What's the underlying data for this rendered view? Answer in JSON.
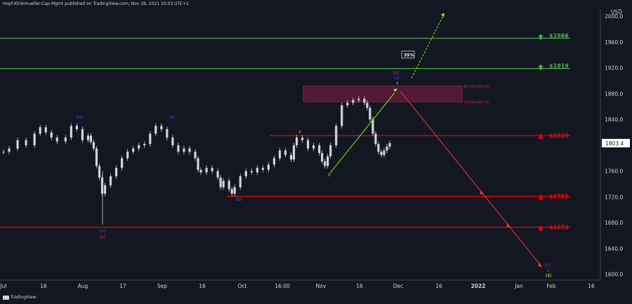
{
  "header": {
    "publisher": "Hopf-Klinkmueller-Cap-Mgmt published on TradingView.com, Nov 26, 2021 10:03 UTC+1"
  },
  "footer": {
    "brand": "TradingView"
  },
  "colors": {
    "background": "#131722",
    "candle": "#d1d4dc",
    "green_level": "#4caf50",
    "red_level": "#ff0000",
    "wave_blue": "#2962ff",
    "wave_magenta": "#e91e63",
    "wave_orange": "#ff9800",
    "wave_yellow": "#ffeb3b",
    "zone_fill": "#5c1a3a",
    "axis_text": "#d1d4dc",
    "projection_red": "#ff3333",
    "projection_green": "#76ff03"
  },
  "chart_data": {
    "type": "candlestick",
    "ylabel": "USD",
    "ylim": [
      1591,
      2010
    ],
    "y_ticks": [
      "1600.0",
      "1640.0",
      "1680.0",
      "1720.0",
      "1760.0",
      "1800.0",
      "1840.0",
      "1880.0",
      "1920.0",
      "1960.0",
      "2000.0"
    ],
    "x_ticks": [
      "Jul",
      "16",
      "Aug",
      "17",
      "Sep",
      "16",
      "Oct",
      "16:00",
      "Nov",
      "16",
      "Dec",
      "16",
      "2022",
      "Jan",
      "Feb",
      "16"
    ],
    "last_price": {
      "value": 1803.4,
      "label": "1803.4"
    },
    "levels": [
      {
        "value": 1966,
        "label": "$1966",
        "direction": "up",
        "color": "#4caf50"
      },
      {
        "value": 1919,
        "label": "$1919",
        "direction": "up",
        "color": "#4caf50"
      },
      {
        "value": 1815,
        "label": "$1815",
        "direction": "down",
        "color": "#ff0000"
      },
      {
        "value": 1721,
        "label": "$1721",
        "direction": "down",
        "color": "#ff0000"
      },
      {
        "value": 1673,
        "label": "$1673",
        "direction": "down",
        "color": "#ff0000"
      }
    ],
    "fib_zone": {
      "top": 1891.8,
      "bottom": 1867.4,
      "top_label": "88.70%(1891.8)",
      "bottom_label": "78.60%(1867.4)"
    },
    "percent_box": {
      "label": "35%"
    },
    "wave_labels": [
      {
        "text": "(iv)",
        "price": 1842,
        "color": "#2962ff",
        "t": 0.5
      },
      {
        "text": "(a)",
        "price": 1842,
        "color": "#2962ff",
        "t": 0.5
      },
      {
        "text": "a",
        "price": 1819,
        "color": "#ff9800",
        "t": 0.5
      },
      {
        "text": "b",
        "price": 1752,
        "color": "#ff9800",
        "t": 0.5
      },
      {
        "text": "(b)",
        "price": 1714,
        "color": "#2962ff",
        "t": 0.5
      },
      {
        "text": "(v)",
        "price": 1665,
        "color": "#2962ff",
        "t": 0.5
      },
      {
        "text": "[a]",
        "price": 1656,
        "color": "#e91e63",
        "t": 0.5
      },
      {
        "text": "[b]",
        "price": 1910,
        "color": "#e91e63",
        "t": 0.5
      },
      {
        "text": "(c)",
        "price": 1902,
        "color": "#2962ff",
        "t": 0.5
      },
      {
        "text": "c",
        "price": 1894,
        "color": "#ffeb3b",
        "t": 0.5
      },
      {
        "text": "[c]",
        "price": 1612,
        "color": "#e91e63",
        "t": 0.5
      },
      {
        "text": "C",
        "price": 1604,
        "color": "#2962ff",
        "t": 0.5
      },
      {
        "text": "(4)",
        "price": 1596,
        "color": "#ffeb3b",
        "t": 0.5
      }
    ],
    "price_path": [
      [
        0,
        1790
      ],
      [
        0.01,
        1795
      ],
      [
        0.025,
        1808
      ],
      [
        0.04,
        1800
      ],
      [
        0.055,
        1818
      ],
      [
        0.065,
        1828
      ],
      [
        0.075,
        1820
      ],
      [
        0.085,
        1812
      ],
      [
        0.095,
        1806
      ],
      [
        0.11,
        1812
      ],
      [
        0.12,
        1830
      ],
      [
        0.13,
        1825
      ],
      [
        0.14,
        1808
      ],
      [
        0.15,
        1815
      ],
      [
        0.155,
        1805
      ],
      [
        0.16,
        1795
      ],
      [
        0.165,
        1768
      ],
      [
        0.17,
        1750
      ],
      [
        0.175,
        1725
      ],
      [
        0.18,
        1738
      ],
      [
        0.19,
        1752
      ],
      [
        0.2,
        1765
      ],
      [
        0.21,
        1780
      ],
      [
        0.22,
        1790
      ],
      [
        0.23,
        1795
      ],
      [
        0.24,
        1800
      ],
      [
        0.25,
        1802
      ],
      [
        0.26,
        1818
      ],
      [
        0.27,
        1830
      ],
      [
        0.28,
        1825
      ],
      [
        0.29,
        1812
      ],
      [
        0.3,
        1800
      ],
      [
        0.31,
        1790
      ],
      [
        0.32,
        1795
      ],
      [
        0.33,
        1790
      ],
      [
        0.34,
        1780
      ],
      [
        0.345,
        1762
      ],
      [
        0.35,
        1758
      ],
      [
        0.36,
        1765
      ],
      [
        0.37,
        1760
      ],
      [
        0.38,
        1750
      ],
      [
        0.385,
        1735
      ],
      [
        0.39,
        1745
      ],
      [
        0.4,
        1732
      ],
      [
        0.405,
        1725
      ],
      [
        0.41,
        1735
      ],
      [
        0.42,
        1752
      ],
      [
        0.43,
        1760
      ],
      [
        0.44,
        1758
      ],
      [
        0.45,
        1765
      ],
      [
        0.46,
        1762
      ],
      [
        0.47,
        1770
      ],
      [
        0.48,
        1780
      ],
      [
        0.49,
        1792
      ],
      [
        0.5,
        1785
      ],
      [
        0.51,
        1778
      ],
      [
        0.515,
        1800
      ],
      [
        0.52,
        1812
      ],
      [
        0.53,
        1808
      ],
      [
        0.54,
        1795
      ],
      [
        0.55,
        1800
      ],
      [
        0.56,
        1788
      ],
      [
        0.565,
        1775
      ],
      [
        0.57,
        1768
      ],
      [
        0.575,
        1783
      ],
      [
        0.58,
        1800
      ],
      [
        0.59,
        1830
      ],
      [
        0.6,
        1862
      ],
      [
        0.61,
        1866
      ],
      [
        0.62,
        1870
      ],
      [
        0.63,
        1872
      ],
      [
        0.64,
        1866
      ],
      [
        0.645,
        1858
      ],
      [
        0.65,
        1840
      ],
      [
        0.655,
        1818
      ],
      [
        0.66,
        1802
      ],
      [
        0.665,
        1790
      ],
      [
        0.67,
        1785
      ],
      [
        0.675,
        1792
      ],
      [
        0.68,
        1798
      ],
      [
        0.685,
        1803.4
      ]
    ]
  }
}
